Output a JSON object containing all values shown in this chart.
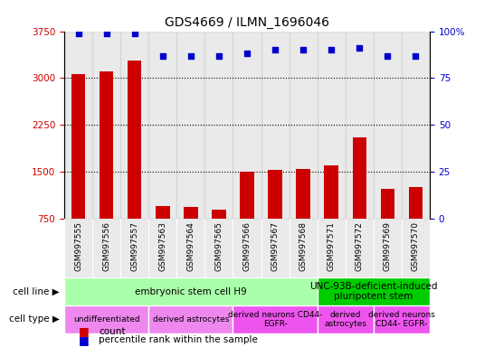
{
  "title": "GDS4669 / ILMN_1696046",
  "samples": [
    "GSM997555",
    "GSM997556",
    "GSM997557",
    "GSM997563",
    "GSM997564",
    "GSM997565",
    "GSM997566",
    "GSM997567",
    "GSM997568",
    "GSM997571",
    "GSM997572",
    "GSM997569",
    "GSM997570"
  ],
  "counts": [
    3060,
    3100,
    3280,
    950,
    930,
    900,
    1500,
    1530,
    1540,
    1600,
    2050,
    1230,
    1250
  ],
  "percentiles": [
    99,
    99,
    99,
    87,
    87,
    87,
    88,
    90,
    90,
    90,
    91,
    87,
    87
  ],
  "ylim_left": [
    750,
    3750
  ],
  "ylim_right": [
    0,
    100
  ],
  "yticks_left": [
    750,
    1500,
    2250,
    3000,
    3750
  ],
  "yticks_right": [
    0,
    25,
    50,
    75,
    100
  ],
  "bar_color": "#cc0000",
  "dot_color": "#0000cc",
  "dot_size": 18,
  "cell_line_groups": [
    {
      "label": "embryonic stem cell H9",
      "start": 0,
      "end": 8,
      "color": "#aaffaa"
    },
    {
      "label": "UNC-93B-deficient-induced\npluripotent stem",
      "start": 9,
      "end": 12,
      "color": "#00cc00"
    }
  ],
  "cell_type_groups": [
    {
      "label": "undifferentiated",
      "start": 0,
      "end": 2,
      "color": "#ee88ee"
    },
    {
      "label": "derived astrocytes",
      "start": 3,
      "end": 5,
      "color": "#ee88ee"
    },
    {
      "label": "derived neurons CD44-\nEGFR-",
      "start": 6,
      "end": 8,
      "color": "#ee55ee"
    },
    {
      "label": "derived\nastrocytes",
      "start": 9,
      "end": 10,
      "color": "#ee55ee"
    },
    {
      "label": "derived neurons\nCD44- EGFR-",
      "start": 11,
      "end": 12,
      "color": "#ee55ee"
    }
  ],
  "col_bg_color": "#cccccc",
  "bar_width": 0.5,
  "tick_color_left": "#cc0000",
  "tick_color_right": "#0000cc",
  "label_fontsize": 7,
  "tick_fontsize": 7.5,
  "sample_fontsize": 6.5,
  "title_fontsize": 10
}
